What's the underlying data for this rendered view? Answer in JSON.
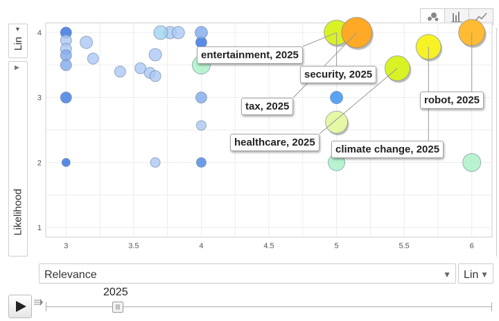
{
  "controls": {
    "y_scale_label": "Lin",
    "x_scale_label": "Lin",
    "x_metric_label": "Relevance",
    "y_metric_label": "Likelihood",
    "year_label": "2025"
  },
  "chart_data": {
    "type": "scatter",
    "title": "",
    "xlabel": "Relevance",
    "ylabel": "Likelihood",
    "xlim": [
      2.85,
      6.15
    ],
    "ylim": [
      0.85,
      4.15
    ],
    "x_ticks": [
      "3",
      "3.5",
      "4",
      "4.5",
      "5",
      "5.5",
      "6"
    ],
    "y_ticks": [
      "1",
      "2",
      "3",
      "4"
    ],
    "points": [
      {
        "x": 3.0,
        "y": 4.0,
        "color": "#2f6fe0",
        "size": 8
      },
      {
        "x": 3.0,
        "y": 3.88,
        "color": "#a9c8f4",
        "size": 8
      },
      {
        "x": 3.0,
        "y": 3.75,
        "color": "#a9c8f4",
        "size": 8
      },
      {
        "x": 3.0,
        "y": 3.65,
        "color": "#7faaec",
        "size": 8
      },
      {
        "x": 3.0,
        "y": 3.5,
        "color": "#7faaec",
        "size": 8
      },
      {
        "x": 3.0,
        "y": 3.0,
        "color": "#3a78e2",
        "size": 8
      },
      {
        "x": 3.0,
        "y": 2.0,
        "color": "#2f6fe0",
        "size": 6
      },
      {
        "x": 3.15,
        "y": 3.85,
        "color": "#a9c8f4",
        "size": 9
      },
      {
        "x": 3.2,
        "y": 3.6,
        "color": "#a9c8f4",
        "size": 8
      },
      {
        "x": 3.4,
        "y": 3.4,
        "color": "#a9c8f4",
        "size": 8
      },
      {
        "x": 3.55,
        "y": 3.45,
        "color": "#a9c8f4",
        "size": 8
      },
      {
        "x": 3.62,
        "y": 3.38,
        "color": "#a9c8f4",
        "size": 8
      },
      {
        "x": 3.66,
        "y": 3.33,
        "color": "#a9c8f4",
        "size": 8
      },
      {
        "x": 3.66,
        "y": 3.66,
        "color": "#a9c8f4",
        "size": 9
      },
      {
        "x": 3.66,
        "y": 2.0,
        "color": "#a9c8f4",
        "size": 7
      },
      {
        "x": 3.7,
        "y": 4.0,
        "color": "#9fd4ef",
        "size": 10
      },
      {
        "x": 3.77,
        "y": 4.0,
        "color": "#a9c8f4",
        "size": 9
      },
      {
        "x": 3.83,
        "y": 4.0,
        "color": "#a9c8f4",
        "size": 9
      },
      {
        "x": 4.0,
        "y": 4.0,
        "color": "#7faaec",
        "size": 9
      },
      {
        "x": 4.0,
        "y": 3.85,
        "color": "#2f6fe0",
        "size": 8
      },
      {
        "x": 4.0,
        "y": 3.5,
        "color": "#a8f0c4",
        "size": 13
      },
      {
        "x": 4.0,
        "y": 3.0,
        "color": "#7faaec",
        "size": 8
      },
      {
        "x": 4.0,
        "y": 2.57,
        "color": "#a9c8f4",
        "size": 7
      },
      {
        "x": 4.0,
        "y": 2.0,
        "color": "#4a84e4",
        "size": 7
      },
      {
        "x": 5.0,
        "y": 3.0,
        "color": "#2f8ff0",
        "size": 9
      },
      {
        "x": 5.0,
        "y": 2.62,
        "color": "#e6f7a5",
        "size": 16
      },
      {
        "x": 5.0,
        "y": 2.0,
        "color": "#a8f0c4",
        "size": 12
      },
      {
        "x": 6.0,
        "y": 2.0,
        "color": "#a8f0c4",
        "size": 13
      },
      {
        "x": 5.15,
        "y": 4.0,
        "color": "#ffa926",
        "size": 22,
        "label": "tax, 2025"
      },
      {
        "x": 5.0,
        "y": 4.0,
        "color": "#d8f226",
        "size": 18,
        "label": "entertainment, 2025"
      },
      {
        "x": 5.45,
        "y": 3.45,
        "color": "#d8f226",
        "size": 18,
        "label": "healthcare, 2025"
      },
      {
        "x": 5.68,
        "y": 3.78,
        "color": "#f6f226",
        "size": 18,
        "label": "climate change, 2025"
      },
      {
        "x": 6.0,
        "y": 4.0,
        "color": "#ffbb33",
        "size": 19,
        "label": "robot, 2025"
      }
    ],
    "annotations": [
      {
        "text": "entertainment, 2025",
        "x": 5.0,
        "y": 4.0
      },
      {
        "text": "security, 2025",
        "x": 5.0,
        "y": 4.0
      },
      {
        "text": "tax, 2025",
        "x": 5.15,
        "y": 4.0
      },
      {
        "text": "healthcare, 2025",
        "x": 5.45,
        "y": 3.45
      },
      {
        "text": "climate change, 2025",
        "x": 5.68,
        "y": 3.78
      },
      {
        "text": "robot, 2025",
        "x": 6.0,
        "y": 4.0
      }
    ]
  }
}
